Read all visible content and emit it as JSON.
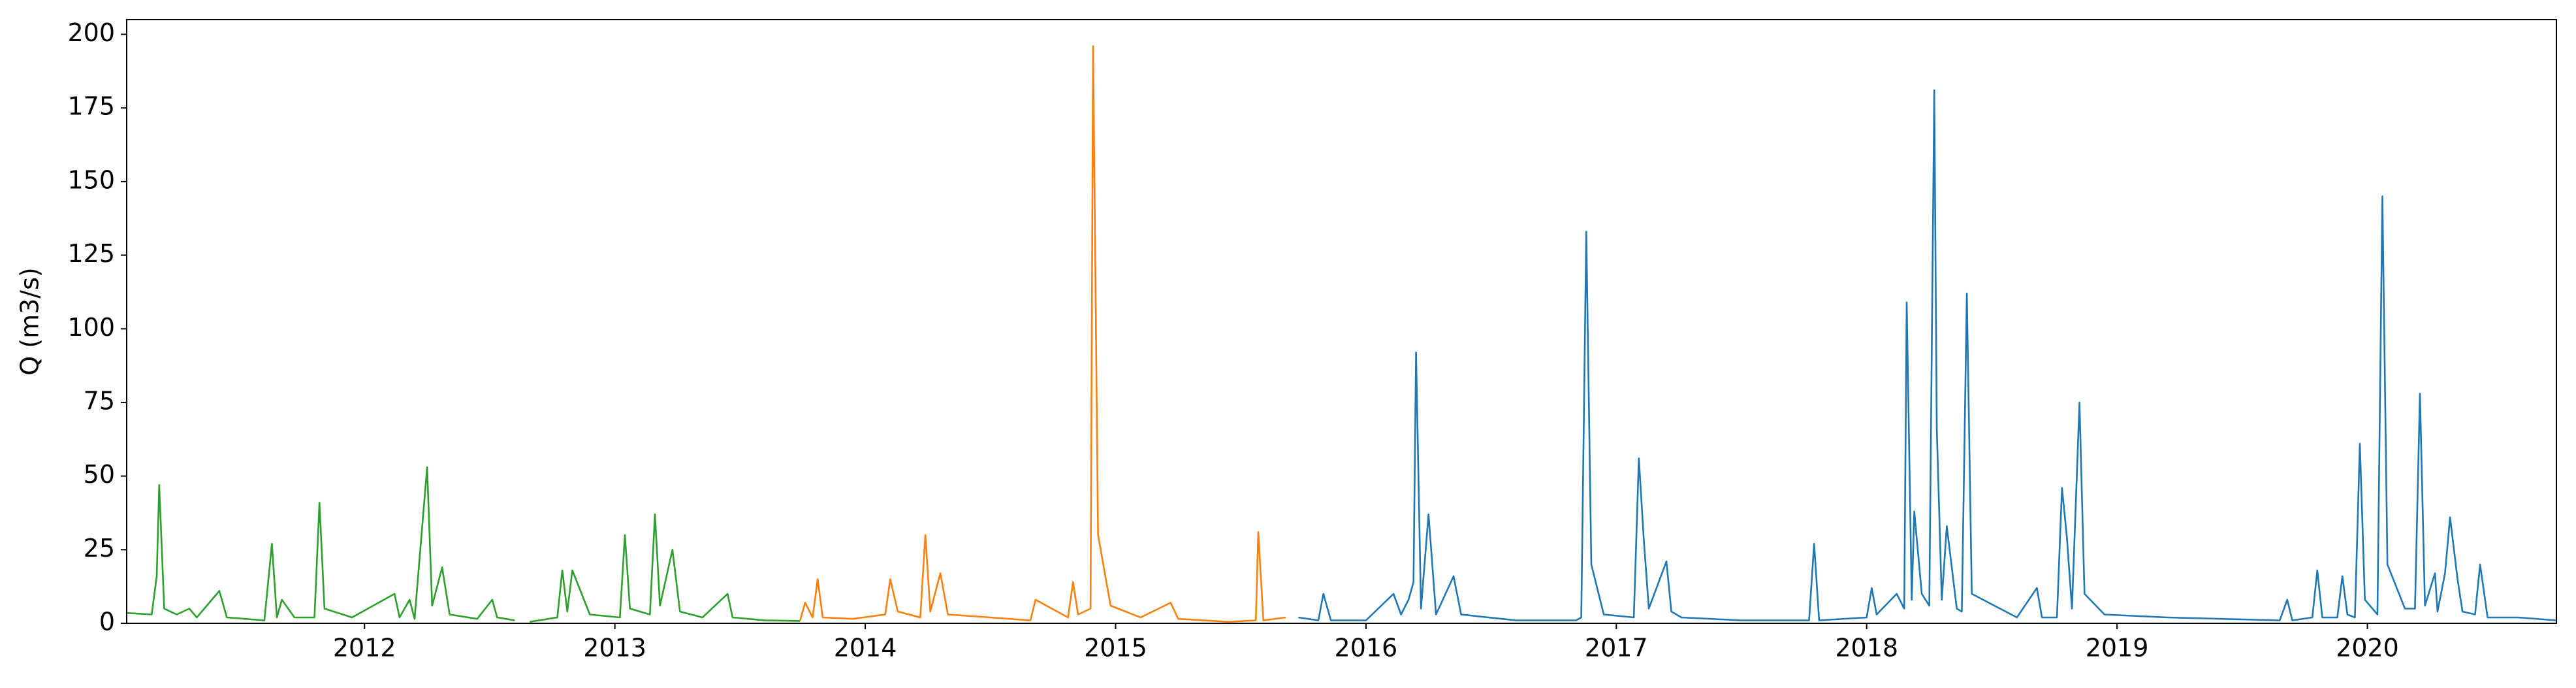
{
  "chart_data": {
    "type": "line",
    "ylabel": "Q (m3/s)",
    "xlim": [
      2011.05,
      2020.755
    ],
    "xticks": [
      2012,
      2013,
      2014,
      2015,
      2016,
      2017,
      2018,
      2019,
      2020
    ],
    "ylim": [
      0,
      205
    ],
    "yticks": [
      0,
      25,
      50,
      75,
      100,
      125,
      150,
      175,
      200
    ],
    "grid": false,
    "series": [
      {
        "color": "#2ca02c",
        "x": [
          2011.05,
          2011.15,
          2011.17,
          2011.18,
          2011.2,
          2011.25,
          2011.3,
          2011.33,
          2011.42,
          2011.45,
          2011.6,
          2011.63,
          2011.65,
          2011.67,
          2011.72,
          2011.8,
          2011.82,
          2011.84,
          2011.95,
          2012.12,
          2012.14,
          2012.18,
          2012.2,
          2012.25,
          2012.27,
          2012.31,
          2012.34,
          2012.45,
          2012.51,
          2012.53,
          2012.6,
          2012.63,
          2012.66,
          2012.77,
          2012.79,
          2012.81,
          2012.83,
          2012.9,
          2013.02,
          2013.04,
          2013.06,
          2013.14,
          2013.16,
          2013.18,
          2013.23,
          2013.26,
          2013.35,
          2013.45,
          2013.47,
          2013.6,
          2013.74
        ],
        "values": [
          3.5,
          3,
          16,
          47,
          5,
          3,
          5,
          2,
          11,
          2,
          1,
          27,
          2,
          8,
          2,
          2,
          41,
          5,
          2,
          10,
          2,
          8,
          1.5,
          53,
          6,
          19,
          3,
          1.5,
          8,
          2,
          1,
          null,
          0.5,
          2,
          18,
          4,
          18,
          3,
          2,
          30,
          5,
          3,
          37,
          6,
          25,
          4,
          2,
          10,
          2,
          1,
          0.8
        ]
      },
      {
        "color": "#ff7f0e",
        "x": [
          2013.74,
          2013.76,
          2013.79,
          2013.81,
          2013.83,
          2013.95,
          2014.08,
          2014.1,
          2014.13,
          2014.22,
          2014.24,
          2014.26,
          2014.3,
          2014.33,
          2014.5,
          2014.66,
          2014.68,
          2014.81,
          2014.83,
          2014.85,
          2014.9,
          2014.91,
          2014.93,
          2014.98,
          2015.1,
          2015.22,
          2015.25,
          2015.45,
          2015.56,
          2015.57,
          2015.59,
          2015.68
        ],
        "values": [
          1,
          7,
          2,
          15,
          2,
          1.5,
          3,
          15,
          4,
          2,
          30,
          4,
          17,
          3,
          2,
          1,
          8,
          2,
          14,
          3,
          5,
          196,
          30,
          6,
          2,
          7,
          1.5,
          0.5,
          1,
          31,
          1,
          2
        ]
      },
      {
        "color": "#1f77b4",
        "x": [
          2015.73,
          2015.81,
          2015.83,
          2015.86,
          2016.0,
          2016.11,
          2016.14,
          2016.17,
          2016.19,
          2016.2,
          2016.22,
          2016.25,
          2016.28,
          2016.35,
          2016.38,
          2016.6,
          2016.84,
          2016.86,
          2016.88,
          2016.9,
          2016.95,
          2017.07,
          2017.09,
          2017.11,
          2017.13,
          2017.2,
          2017.22,
          2017.26,
          2017.5,
          2017.77,
          2017.79,
          2017.81,
          2018.0,
          2018.02,
          2018.04,
          2018.12,
          2018.15,
          2018.16,
          2018.18,
          2018.19,
          2018.22,
          2018.25,
          2018.27,
          2018.28,
          2018.3,
          2018.32,
          2018.36,
          2018.38,
          2018.4,
          2018.42,
          2018.6,
          2018.68,
          2018.7,
          2018.76,
          2018.78,
          2018.8,
          2018.82,
          2018.85,
          2018.87,
          2018.95,
          2019.2,
          2019.65,
          2019.68,
          2019.7,
          2019.78,
          2019.8,
          2019.82,
          2019.88,
          2019.9,
          2019.92,
          2019.95,
          2019.97,
          2019.99,
          2020.04,
          2020.06,
          2020.08,
          2020.15,
          2020.19,
          2020.21,
          2020.23,
          2020.27,
          2020.28,
          2020.31,
          2020.33,
          2020.36,
          2020.38,
          2020.43,
          2020.45,
          2020.48,
          2020.6,
          2020.755
        ],
        "values": [
          2,
          1,
          10,
          1,
          1,
          10,
          3,
          8,
          14,
          92,
          5,
          37,
          3,
          16,
          3,
          1,
          1,
          2,
          133,
          20,
          3,
          2,
          56,
          28,
          5,
          21,
          4,
          2,
          1,
          1,
          27,
          1,
          2,
          12,
          3,
          10,
          5,
          109,
          8,
          38,
          10,
          6,
          181,
          66,
          8,
          33,
          5,
          4,
          112,
          10,
          2,
          12,
          2,
          2,
          46,
          29,
          5,
          75,
          10,
          3,
          2,
          1,
          8,
          1,
          2,
          18,
          2,
          2,
          16,
          3,
          2,
          61,
          8,
          3,
          145,
          20,
          5,
          5,
          78,
          6,
          17,
          4,
          17,
          36,
          15,
          4,
          3,
          20,
          2,
          2,
          1
        ]
      }
    ]
  }
}
